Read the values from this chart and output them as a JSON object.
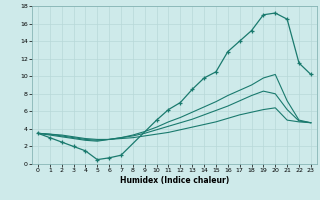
{
  "xlabel": "Humidex (Indice chaleur)",
  "xlim": [
    -0.5,
    23.5
  ],
  "ylim": [
    0,
    18
  ],
  "xticks": [
    0,
    1,
    2,
    3,
    4,
    5,
    6,
    7,
    8,
    9,
    10,
    11,
    12,
    13,
    14,
    15,
    16,
    17,
    18,
    19,
    20,
    21,
    22,
    23
  ],
  "yticks": [
    0,
    2,
    4,
    6,
    8,
    10,
    12,
    14,
    16,
    18
  ],
  "bg_color": "#ceeaea",
  "grid_color": "#b8d8d8",
  "line_color": "#1a7a6e",
  "main_x": [
    0,
    1,
    2,
    3,
    4,
    5,
    6,
    7,
    10,
    11,
    12,
    13,
    14,
    15,
    16,
    17,
    18,
    19,
    20,
    21,
    22,
    23
  ],
  "main_y": [
    3.5,
    3.0,
    2.5,
    2.0,
    1.5,
    0.5,
    0.7,
    1.0,
    5.0,
    6.2,
    7.0,
    8.5,
    9.8,
    10.5,
    12.8,
    14.0,
    15.2,
    17.0,
    17.2,
    16.5,
    11.5,
    10.2
  ],
  "curve2_x": [
    0,
    1,
    2,
    3,
    4,
    5,
    6,
    7,
    8,
    9,
    10,
    11,
    12,
    13,
    14,
    15,
    16,
    17,
    18,
    19,
    20,
    21,
    22,
    23
  ],
  "curve2_y": [
    3.5,
    3.3,
    3.1,
    2.9,
    2.7,
    2.6,
    2.8,
    3.0,
    3.3,
    3.7,
    4.2,
    4.8,
    5.3,
    5.9,
    6.5,
    7.1,
    7.8,
    8.4,
    9.0,
    9.8,
    10.2,
    7.2,
    5.0,
    4.7
  ],
  "curve3_x": [
    0,
    1,
    2,
    3,
    4,
    5,
    6,
    7,
    8,
    9,
    10,
    11,
    12,
    13,
    14,
    15,
    16,
    17,
    18,
    19,
    20,
    21,
    22,
    23
  ],
  "curve3_y": [
    3.5,
    3.4,
    3.2,
    3.0,
    2.8,
    2.7,
    2.8,
    3.0,
    3.2,
    3.5,
    3.9,
    4.3,
    4.7,
    5.1,
    5.6,
    6.1,
    6.6,
    7.2,
    7.8,
    8.3,
    8.0,
    6.2,
    4.9,
    4.7
  ],
  "curve4_x": [
    0,
    1,
    2,
    3,
    4,
    5,
    6,
    7,
    8,
    9,
    10,
    11,
    12,
    13,
    14,
    15,
    16,
    17,
    18,
    19,
    20,
    21,
    22,
    23
  ],
  "curve4_y": [
    3.5,
    3.4,
    3.3,
    3.1,
    2.9,
    2.8,
    2.8,
    2.9,
    3.0,
    3.2,
    3.4,
    3.6,
    3.9,
    4.2,
    4.5,
    4.8,
    5.2,
    5.6,
    5.9,
    6.2,
    6.4,
    5.0,
    4.8,
    4.7
  ]
}
